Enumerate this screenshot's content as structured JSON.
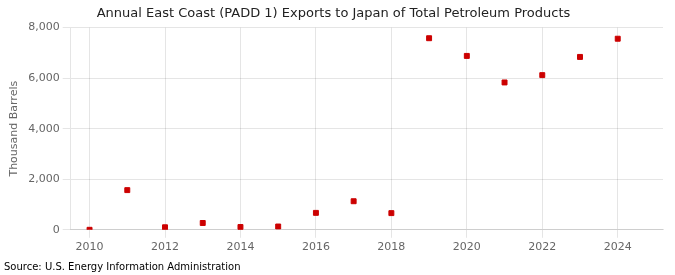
{
  "chart_data": {
    "type": "scatter",
    "title": "Annual East Coast (PADD 1) Exports to Japan of Total Petroleum Products",
    "ylabel": "Thousand Barrels",
    "annotation": "Source: U.S. Energy Information Administration",
    "x": [
      2010,
      2011,
      2012,
      2013,
      2014,
      2015,
      2016,
      2017,
      2018,
      2019,
      2020,
      2021,
      2022,
      2023,
      2024
    ],
    "values": [
      0,
      1570,
      100,
      270,
      110,
      130,
      670,
      1130,
      660,
      7580,
      6880,
      5830,
      6120,
      6840,
      7560
    ],
    "color": "#cc0000",
    "marker": "square",
    "xlim": [
      2009.5,
      2025.2
    ],
    "xticks": [
      2010,
      2012,
      2014,
      2016,
      2018,
      2020,
      2022,
      2024
    ],
    "ylim": [
      0,
      8000
    ],
    "yticks": [
      0,
      {
        "value": 2000,
        "label": "2,000"
      },
      {
        "value": 4000,
        "label": "4,000"
      },
      {
        "value": 6000,
        "label": "6,000"
      },
      {
        "value": 8000,
        "label": "8,000"
      }
    ],
    "grid": true
  }
}
